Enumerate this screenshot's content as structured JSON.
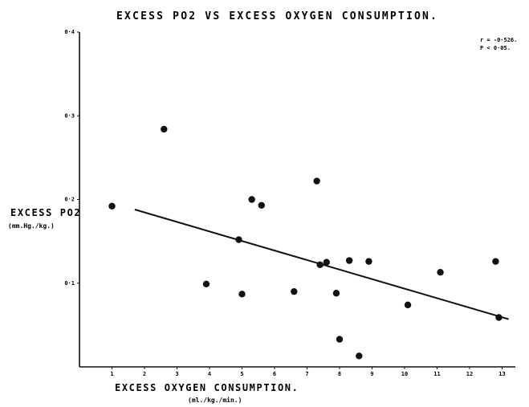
{
  "chart_data": {
    "type": "scatter",
    "title": "EXCESS PO2 VS EXCESS OXYGEN CONSUMPTION.",
    "xlabel": "EXCESS OXYGEN CONSUMPTION.",
    "xunit": "(ml./kg./min.)",
    "ylabel": "EXCESS PO2",
    "yunit": "(mm.Hg./kg.)",
    "xlim": [
      0,
      13
    ],
    "ylim": [
      0,
      0.4
    ],
    "xticks": [
      "1",
      "2",
      "3",
      "4",
      "5",
      "6",
      "7",
      "8",
      "9",
      "10",
      "11",
      "12",
      "13"
    ],
    "yticks": [
      "0·1",
      "0·2",
      "0·3",
      "0·4"
    ],
    "stats": [
      "r = -0·526.",
      "P < 0·05."
    ],
    "points": {
      "x": [
        1.0,
        2.6,
        3.9,
        4.9,
        5.0,
        5.3,
        5.6,
        6.6,
        7.3,
        7.4,
        7.6,
        7.9,
        8.0,
        8.3,
        8.6,
        8.9,
        10.1,
        11.1,
        12.8,
        12.9
      ],
      "y": [
        0.192,
        0.284,
        0.099,
        0.152,
        0.087,
        0.2,
        0.193,
        0.09,
        0.222,
        0.122,
        0.125,
        0.088,
        0.033,
        0.127,
        0.013,
        0.126,
        0.074,
        0.113,
        0.126,
        0.059
      ]
    },
    "regression": {
      "x": [
        1.7,
        13.2
      ],
      "y": [
        0.188,
        0.057
      ]
    }
  },
  "colors": {
    "ink": "#111111",
    "background": "#ffffff"
  }
}
